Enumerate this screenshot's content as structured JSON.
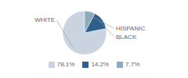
{
  "chart_data": {
    "type": "pie",
    "categories": [
      "WHITE",
      "BLACK",
      "HISPANIC"
    ],
    "values": [
      78.1,
      14.2,
      7.7
    ],
    "value_labels": [
      "78.1%",
      "14.2%",
      "7.7%"
    ],
    "colors": [
      "#c9d4e0",
      "#2e5f8a",
      "#8eaabf"
    ],
    "legend": "bottom"
  }
}
